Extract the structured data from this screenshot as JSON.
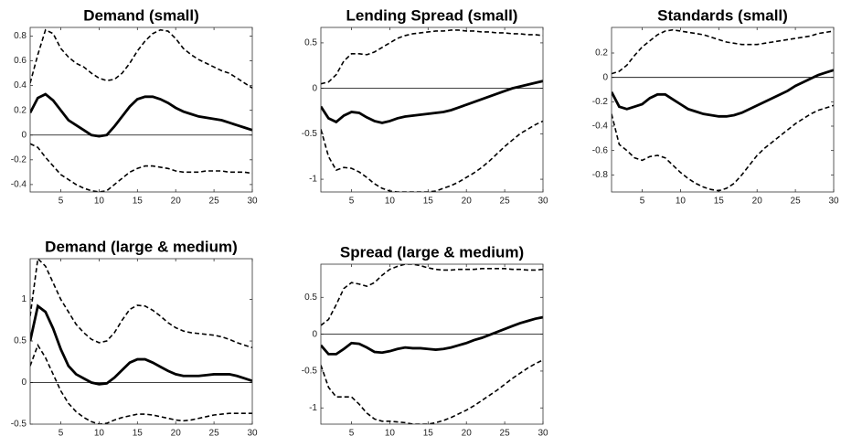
{
  "chart_data": [
    {
      "type": "line",
      "title": "Demand (small)",
      "x": [
        1,
        2,
        3,
        4,
        5,
        6,
        7,
        8,
        9,
        10,
        11,
        12,
        13,
        14,
        15,
        16,
        17,
        18,
        19,
        20,
        21,
        22,
        23,
        24,
        25,
        26,
        27,
        28,
        29,
        30
      ],
      "xlim": [
        1,
        30
      ],
      "xticks": [
        5,
        10,
        15,
        20,
        25,
        30
      ],
      "ylim": [
        -0.46,
        0.87
      ],
      "yticks": [
        -0.4,
        -0.2,
        0,
        0.2,
        0.4,
        0.6,
        0.8
      ],
      "hline": 0,
      "series": [
        {
          "color": "#000000",
          "linestyle": "solid",
          "values": [
            0.18,
            0.3,
            0.33,
            0.28,
            0.2,
            0.12,
            0.08,
            0.04,
            0.0,
            -0.01,
            0.0,
            0.07,
            0.15,
            0.23,
            0.29,
            0.31,
            0.31,
            0.29,
            0.26,
            0.22,
            0.19,
            0.17,
            0.15,
            0.14,
            0.13,
            0.12,
            0.1,
            0.08,
            0.06,
            0.04
          ]
        },
        {
          "color": "#000000",
          "linestyle": "dashed",
          "values": [
            0.42,
            0.65,
            0.85,
            0.82,
            0.7,
            0.63,
            0.58,
            0.55,
            0.5,
            0.46,
            0.44,
            0.45,
            0.5,
            0.58,
            0.68,
            0.76,
            0.82,
            0.85,
            0.84,
            0.78,
            0.7,
            0.65,
            0.61,
            0.58,
            0.55,
            0.52,
            0.5,
            0.46,
            0.42,
            0.38
          ]
        },
        {
          "color": "#000000",
          "linestyle": "dashed",
          "values": [
            -0.07,
            -0.1,
            -0.18,
            -0.25,
            -0.32,
            -0.36,
            -0.4,
            -0.43,
            -0.45,
            -0.46,
            -0.45,
            -0.4,
            -0.35,
            -0.3,
            -0.27,
            -0.25,
            -0.25,
            -0.26,
            -0.27,
            -0.29,
            -0.3,
            -0.3,
            -0.3,
            -0.29,
            -0.29,
            -0.29,
            -0.3,
            -0.3,
            -0.3,
            -0.31
          ]
        }
      ]
    },
    {
      "type": "line",
      "title": "Lending Spread (small)",
      "x": [
        1,
        2,
        3,
        4,
        5,
        6,
        7,
        8,
        9,
        10,
        11,
        12,
        13,
        14,
        15,
        16,
        17,
        18,
        19,
        20,
        21,
        22,
        23,
        24,
        25,
        26,
        27,
        28,
        29,
        30
      ],
      "xlim": [
        1,
        30
      ],
      "xticks": [
        5,
        10,
        15,
        20,
        25,
        30
      ],
      "ylim": [
        -1.14,
        0.67
      ],
      "yticks": [
        -1,
        -0.5,
        0,
        0.5
      ],
      "hline": 0,
      "series": [
        {
          "color": "#000000",
          "linestyle": "solid",
          "values": [
            -0.2,
            -0.33,
            -0.37,
            -0.3,
            -0.26,
            -0.27,
            -0.32,
            -0.36,
            -0.38,
            -0.36,
            -0.33,
            -0.31,
            -0.3,
            -0.29,
            -0.28,
            -0.27,
            -0.26,
            -0.24,
            -0.21,
            -0.18,
            -0.15,
            -0.12,
            -0.09,
            -0.06,
            -0.03,
            0.0,
            0.02,
            0.04,
            0.06,
            0.08
          ]
        },
        {
          "color": "#000000",
          "linestyle": "dashed",
          "values": [
            0.05,
            0.07,
            0.15,
            0.3,
            0.38,
            0.38,
            0.37,
            0.4,
            0.45,
            0.5,
            0.55,
            0.58,
            0.6,
            0.61,
            0.62,
            0.63,
            0.63,
            0.64,
            0.64,
            0.63,
            0.63,
            0.62,
            0.62,
            0.61,
            0.61,
            0.6,
            0.6,
            0.59,
            0.59,
            0.58
          ]
        },
        {
          "color": "#000000",
          "linestyle": "dashed",
          "values": [
            -0.45,
            -0.75,
            -0.9,
            -0.87,
            -0.88,
            -0.92,
            -0.98,
            -1.05,
            -1.1,
            -1.13,
            -1.14,
            -1.14,
            -1.14,
            -1.14,
            -1.14,
            -1.13,
            -1.1,
            -1.07,
            -1.03,
            -0.98,
            -0.93,
            -0.87,
            -0.8,
            -0.72,
            -0.64,
            -0.57,
            -0.5,
            -0.45,
            -0.4,
            -0.36
          ]
        }
      ]
    },
    {
      "type": "line",
      "title": "Standards (small)",
      "x": [
        1,
        2,
        3,
        4,
        5,
        6,
        7,
        8,
        9,
        10,
        11,
        12,
        13,
        14,
        15,
        16,
        17,
        18,
        19,
        20,
        21,
        22,
        23,
        24,
        25,
        26,
        27,
        28,
        29,
        30
      ],
      "xlim": [
        1,
        30
      ],
      "xticks": [
        5,
        10,
        15,
        20,
        25,
        30
      ],
      "ylim": [
        -0.94,
        0.41
      ],
      "yticks": [
        -0.8,
        -0.6,
        -0.4,
        -0.2,
        0,
        0.2
      ],
      "hline": 0,
      "series": [
        {
          "color": "#000000",
          "linestyle": "solid",
          "values": [
            -0.12,
            -0.24,
            -0.26,
            -0.24,
            -0.22,
            -0.17,
            -0.14,
            -0.14,
            -0.18,
            -0.22,
            -0.26,
            -0.28,
            -0.3,
            -0.31,
            -0.32,
            -0.32,
            -0.31,
            -0.29,
            -0.26,
            -0.23,
            -0.2,
            -0.17,
            -0.14,
            -0.11,
            -0.07,
            -0.04,
            -0.01,
            0.02,
            0.04,
            0.06
          ]
        },
        {
          "color": "#000000",
          "linestyle": "dashed",
          "values": [
            0.03,
            0.05,
            0.1,
            0.18,
            0.25,
            0.3,
            0.35,
            0.38,
            0.39,
            0.38,
            0.37,
            0.36,
            0.35,
            0.33,
            0.31,
            0.29,
            0.28,
            0.27,
            0.27,
            0.27,
            0.28,
            0.29,
            0.3,
            0.31,
            0.32,
            0.33,
            0.34,
            0.36,
            0.37,
            0.38
          ]
        },
        {
          "color": "#000000",
          "linestyle": "dashed",
          "values": [
            -0.3,
            -0.55,
            -0.6,
            -0.66,
            -0.68,
            -0.65,
            -0.64,
            -0.66,
            -0.72,
            -0.78,
            -0.83,
            -0.87,
            -0.9,
            -0.92,
            -0.93,
            -0.91,
            -0.87,
            -0.8,
            -0.72,
            -0.64,
            -0.58,
            -0.53,
            -0.48,
            -0.43,
            -0.38,
            -0.34,
            -0.3,
            -0.27,
            -0.25,
            -0.23
          ]
        }
      ]
    },
    {
      "type": "line",
      "title": "Demand (large & medium)",
      "x": [
        1,
        2,
        3,
        4,
        5,
        6,
        7,
        8,
        9,
        10,
        11,
        12,
        13,
        14,
        15,
        16,
        17,
        18,
        19,
        20,
        21,
        22,
        23,
        24,
        25,
        26,
        27,
        28,
        29,
        30
      ],
      "xlim": [
        1,
        30
      ],
      "xticks": [
        5,
        10,
        15,
        20,
        25,
        30
      ],
      "ylim": [
        -0.5,
        1.49
      ],
      "yticks": [
        -0.5,
        0,
        0.5,
        1
      ],
      "hline": 0,
      "series": [
        {
          "color": "#000000",
          "linestyle": "solid",
          "values": [
            0.5,
            0.92,
            0.85,
            0.65,
            0.4,
            0.2,
            0.1,
            0.05,
            0.0,
            -0.02,
            -0.01,
            0.06,
            0.15,
            0.24,
            0.28,
            0.28,
            0.24,
            0.19,
            0.14,
            0.1,
            0.08,
            0.08,
            0.08,
            0.09,
            0.1,
            0.1,
            0.1,
            0.08,
            0.05,
            0.02
          ]
        },
        {
          "color": "#000000",
          "linestyle": "dashed",
          "values": [
            0.8,
            1.49,
            1.4,
            1.2,
            1.0,
            0.85,
            0.7,
            0.6,
            0.52,
            0.48,
            0.5,
            0.6,
            0.75,
            0.88,
            0.93,
            0.92,
            0.87,
            0.8,
            0.72,
            0.66,
            0.62,
            0.6,
            0.59,
            0.58,
            0.57,
            0.55,
            0.52,
            0.48,
            0.45,
            0.42
          ]
        },
        {
          "color": "#000000",
          "linestyle": "dashed",
          "values": [
            0.2,
            0.45,
            0.3,
            0.1,
            -0.1,
            -0.25,
            -0.35,
            -0.42,
            -0.47,
            -0.5,
            -0.49,
            -0.45,
            -0.42,
            -0.4,
            -0.38,
            -0.38,
            -0.39,
            -0.41,
            -0.43,
            -0.45,
            -0.46,
            -0.45,
            -0.43,
            -0.41,
            -0.39,
            -0.38,
            -0.37,
            -0.37,
            -0.37,
            -0.37
          ]
        }
      ]
    },
    {
      "type": "line",
      "title": "Spread (large & medium)",
      "x": [
        1,
        2,
        3,
        4,
        5,
        6,
        7,
        8,
        9,
        10,
        11,
        12,
        13,
        14,
        15,
        16,
        17,
        18,
        19,
        20,
        21,
        22,
        23,
        24,
        25,
        26,
        27,
        28,
        29,
        30
      ],
      "xlim": [
        1,
        30
      ],
      "xticks": [
        5,
        10,
        15,
        20,
        25,
        30
      ],
      "ylim": [
        -1.22,
        0.95
      ],
      "yticks": [
        -1,
        -0.5,
        0,
        0.5
      ],
      "hline": 0,
      "series": [
        {
          "color": "#000000",
          "linestyle": "solid",
          "values": [
            -0.15,
            -0.27,
            -0.27,
            -0.2,
            -0.12,
            -0.13,
            -0.18,
            -0.24,
            -0.25,
            -0.23,
            -0.2,
            -0.18,
            -0.19,
            -0.19,
            -0.2,
            -0.21,
            -0.2,
            -0.18,
            -0.15,
            -0.12,
            -0.08,
            -0.05,
            -0.01,
            0.03,
            0.07,
            0.11,
            0.15,
            0.18,
            0.21,
            0.23
          ]
        },
        {
          "color": "#000000",
          "linestyle": "dashed",
          "values": [
            0.12,
            0.2,
            0.4,
            0.62,
            0.7,
            0.68,
            0.65,
            0.7,
            0.8,
            0.88,
            0.92,
            0.95,
            0.95,
            0.93,
            0.9,
            0.88,
            0.87,
            0.87,
            0.88,
            0.88,
            0.88,
            0.89,
            0.89,
            0.89,
            0.89,
            0.88,
            0.88,
            0.87,
            0.87,
            0.88
          ]
        },
        {
          "color": "#000000",
          "linestyle": "dashed",
          "values": [
            -0.42,
            -0.72,
            -0.85,
            -0.85,
            -0.85,
            -0.95,
            -1.07,
            -1.15,
            -1.18,
            -1.18,
            -1.19,
            -1.2,
            -1.22,
            -1.22,
            -1.22,
            -1.2,
            -1.17,
            -1.13,
            -1.08,
            -1.03,
            -0.97,
            -0.9,
            -0.83,
            -0.76,
            -0.68,
            -0.6,
            -0.53,
            -0.46,
            -0.4,
            -0.35
          ]
        }
      ]
    }
  ]
}
